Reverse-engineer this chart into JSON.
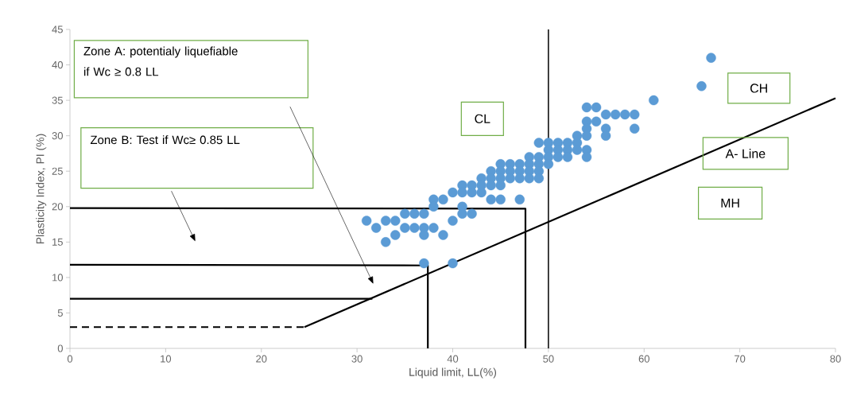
{
  "chart_data": {
    "type": "scatter",
    "xlabel": "Liquid limit, LL(%)",
    "ylabel": "Plasticity Index, PI (%)",
    "xlim": [
      0,
      80
    ],
    "xticks": [
      0,
      10,
      20,
      30,
      40,
      50,
      60,
      70,
      80
    ],
    "ylim": [
      0,
      45
    ],
    "yticks": [
      0,
      5,
      10,
      15,
      20,
      25,
      30,
      35,
      40,
      45
    ],
    "grid": false,
    "series": [
      {
        "type": "scatter",
        "color": "#5b9bd5",
        "marker": "circle",
        "x": [
          31,
          32,
          33,
          34,
          33,
          34,
          35,
          36,
          37,
          35,
          36,
          37,
          37,
          38,
          39,
          38,
          38,
          39,
          37,
          40,
          40,
          40,
          41,
          41,
          41,
          41,
          42,
          42,
          42,
          43,
          43,
          43,
          44,
          44,
          44,
          44,
          45,
          45,
          45,
          45,
          45,
          46,
          46,
          46,
          47,
          47,
          47,
          47,
          48,
          48,
          48,
          48,
          49,
          49,
          49,
          49,
          49,
          50,
          50,
          50,
          50,
          51,
          51,
          51,
          52,
          52,
          52,
          53,
          53,
          53,
          54,
          55,
          54,
          54,
          54,
          54,
          54,
          55,
          56,
          57,
          58,
          59,
          56,
          56,
          59,
          61,
          66,
          67
        ],
        "values": [
          18,
          17,
          18,
          18,
          15,
          16,
          19,
          19,
          19,
          17,
          17,
          17,
          16,
          17,
          16,
          21,
          20,
          21,
          12,
          12,
          18,
          22,
          23,
          22,
          20,
          19,
          23,
          22,
          19,
          24,
          23,
          22,
          25,
          24,
          23,
          21,
          26,
          25,
          24,
          23,
          21,
          26,
          25,
          24,
          26,
          25,
          24,
          21,
          27,
          26,
          25,
          24,
          29,
          27,
          26,
          25,
          24,
          29,
          28,
          27,
          26,
          29,
          28,
          27,
          29,
          28,
          27,
          30,
          29,
          28,
          34,
          34,
          32,
          31,
          30,
          28,
          27,
          32,
          33,
          33,
          33,
          33,
          31,
          30,
          31,
          35,
          37,
          41
        ]
      },
      {
        "type": "line",
        "color": "#000000",
        "marker": "none",
        "line_style": "solid",
        "x": [
          24.5,
          80
        ],
        "values": [
          3,
          35.3
        ]
      },
      {
        "type": "line",
        "color": "#000000",
        "marker": "none",
        "line_style": "dashed",
        "x": [
          0,
          24.5
        ],
        "values": [
          3,
          3
        ]
      },
      {
        "type": "line",
        "color": "#000000",
        "marker": "none",
        "line_style": "solid",
        "x": [
          0,
          47.6,
          47.6
        ],
        "values": [
          19.8,
          19.7,
          0
        ]
      },
      {
        "type": "line",
        "color": "#000000",
        "marker": "none",
        "line_style": "solid",
        "x": [
          0,
          37.4,
          37.4
        ],
        "values": [
          11.8,
          11.7,
          0
        ]
      },
      {
        "type": "line",
        "color": "#000000",
        "marker": "none",
        "line_style": "solid",
        "x": [
          0,
          31.6
        ],
        "values": [
          7,
          7
        ]
      }
    ],
    "ref_lines": [
      {
        "axis": "x",
        "value": 50,
        "color": "#000000"
      }
    ],
    "annotations": [
      "Zone A: potentialy liquefiable if Wc  ≥ 0.8 LL",
      "Zone B: Test if Wc≥ 0.85 LL",
      "CL",
      "CH",
      "A- Line",
      "MH"
    ]
  }
}
